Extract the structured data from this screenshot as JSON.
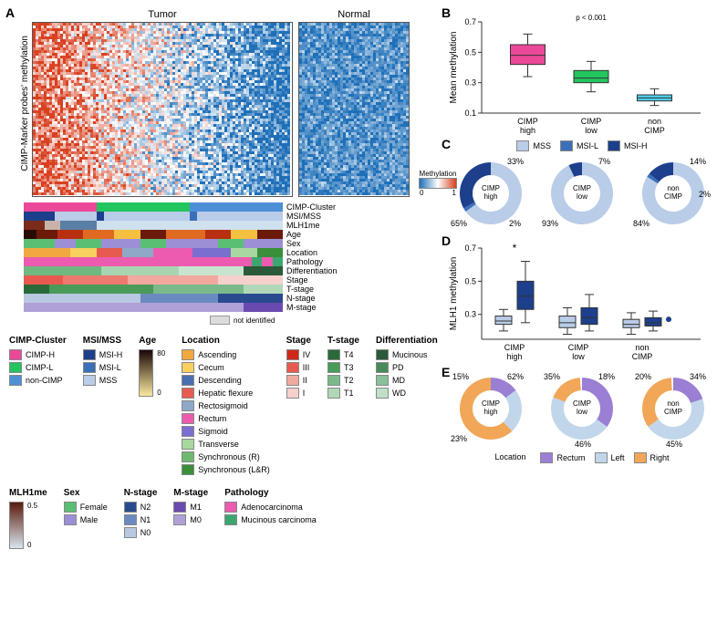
{
  "panelA": {
    "label": "A",
    "ylabel": "CIMP-Marker probes' methylation",
    "tumor_title": "Tumor",
    "normal_title": "Normal",
    "tumor_width": 284,
    "normal_width": 120,
    "heatmap_height": 190,
    "meth_legend_label": "Methylation",
    "meth_legend_min": "0",
    "meth_legend_max": "1",
    "color_low": "#1e6fb8",
    "color_mid": "#ffffff",
    "color_high": "#d84020",
    "not_identified": "not identified",
    "not_identified_color": "#dcdcdc",
    "tracks": [
      {
        "name": "CIMP-Cluster",
        "segments": [
          {
            "c": "#ec4899",
            "w": 0.28
          },
          {
            "c": "#22c55e",
            "w": 0.36
          },
          {
            "c": "#4d8fd6",
            "w": 0.36
          }
        ]
      },
      {
        "name": "MSI/MSS",
        "segments": [
          {
            "c": "#1d3f8c",
            "w": 0.12
          },
          {
            "c": "#b9cce8",
            "w": 0.16
          },
          {
            "c": "#1d3f8c",
            "w": 0.03
          },
          {
            "c": "#b9cce8",
            "w": 0.33
          },
          {
            "c": "#3b6fb8",
            "w": 0.03
          },
          {
            "c": "#b9cce8",
            "w": 0.33
          }
        ]
      },
      {
        "name": "MLH1me",
        "segments": [
          {
            "c": "#7a2b1a",
            "w": 0.08
          },
          {
            "c": "#c9b3a8",
            "w": 0.06
          },
          {
            "c": "#5a7fa6",
            "w": 0.14
          },
          {
            "c": "#cfe0ee",
            "w": 0.36
          },
          {
            "c": "#cfe0ee",
            "w": 0.36
          }
        ]
      },
      {
        "name": "Age",
        "segments": [
          {
            "c": "#2a0a05",
            "w": 0.05
          },
          {
            "c": "#6b1a0a",
            "w": 0.08
          },
          {
            "c": "#b83010",
            "w": 0.1
          },
          {
            "c": "#e06a20",
            "w": 0.12
          },
          {
            "c": "#f5c040",
            "w": 0.1
          },
          {
            "c": "#6b1a0a",
            "w": 0.1
          },
          {
            "c": "#e06a20",
            "w": 0.15
          },
          {
            "c": "#b83010",
            "w": 0.1
          },
          {
            "c": "#f5c040",
            "w": 0.1
          },
          {
            "c": "#6b1a0a",
            "w": 0.1
          }
        ]
      },
      {
        "name": "Sex",
        "segments": [
          {
            "c": "#5bbf73",
            "w": 0.12
          },
          {
            "c": "#9c8fd6",
            "w": 0.08
          },
          {
            "c": "#5bbf73",
            "w": 0.1
          },
          {
            "c": "#9c8fd6",
            "w": 0.15
          },
          {
            "c": "#5bbf73",
            "w": 0.1
          },
          {
            "c": "#9c8fd6",
            "w": 0.2
          },
          {
            "c": "#5bbf73",
            "w": 0.1
          },
          {
            "c": "#9c8fd6",
            "w": 0.15
          }
        ]
      },
      {
        "name": "Location",
        "segments": [
          {
            "c": "#f2a840",
            "w": 0.18
          },
          {
            "c": "#f7d060",
            "w": 0.1
          },
          {
            "c": "#e85a4f",
            "w": 0.1
          },
          {
            "c": "#8fa8c8",
            "w": 0.12
          },
          {
            "c": "#ec5bb0",
            "w": 0.15
          },
          {
            "c": "#7a6fd0",
            "w": 0.15
          },
          {
            "c": "#a8d8a0",
            "w": 0.1
          },
          {
            "c": "#3a8f3a",
            "w": 0.1
          }
        ]
      },
      {
        "name": "Pathology",
        "segments": [
          {
            "c": "#ec5bb0",
            "w": 0.88
          },
          {
            "c": "#3ca66f",
            "w": 0.04
          },
          {
            "c": "#ec5bb0",
            "w": 0.04
          },
          {
            "c": "#3ca66f",
            "w": 0.04
          }
        ]
      },
      {
        "name": "Differentiation",
        "segments": [
          {
            "c": "#6fb87f",
            "w": 0.3
          },
          {
            "c": "#a8d4b0",
            "w": 0.3
          },
          {
            "c": "#c8e4cf",
            "w": 0.25
          },
          {
            "c": "#2a5a3a",
            "w": 0.15
          }
        ]
      },
      {
        "name": "Stage",
        "segments": [
          {
            "c": "#e85a4f",
            "w": 0.15
          },
          {
            "c": "#ec7a6f",
            "w": 0.25
          },
          {
            "c": "#f0a89f",
            "w": 0.35
          },
          {
            "c": "#f6d0cc",
            "w": 0.25
          }
        ]
      },
      {
        "name": "T-stage",
        "segments": [
          {
            "c": "#2a6a3a",
            "w": 0.1
          },
          {
            "c": "#4a9a5a",
            "w": 0.4
          },
          {
            "c": "#7aba8a",
            "w": 0.35
          },
          {
            "c": "#b0d8b8",
            "w": 0.15
          }
        ]
      },
      {
        "name": "N-stage",
        "segments": [
          {
            "c": "#b8c8e0",
            "w": 0.45
          },
          {
            "c": "#6a8ac0",
            "w": 0.3
          },
          {
            "c": "#2a4a90",
            "w": 0.25
          }
        ]
      },
      {
        "name": "M-stage",
        "segments": [
          {
            "c": "#b0a0d8",
            "w": 0.85
          },
          {
            "c": "#6a4ab0",
            "w": 0.15
          }
        ]
      }
    ]
  },
  "legends": {
    "cimp_cluster": {
      "title": "CIMP-Cluster",
      "items": [
        {
          "c": "#ec4899",
          "t": "CIMP-H"
        },
        {
          "c": "#22c55e",
          "t": "CIMP-L"
        },
        {
          "c": "#4d8fd6",
          "t": "non-CIMP"
        }
      ]
    },
    "differentiation": {
      "title": "Differentiation",
      "items": [
        {
          "c": "#2a5a3a",
          "t": "Mucinous"
        },
        {
          "c": "#4a8a5a",
          "t": "PD"
        },
        {
          "c": "#8ac09a",
          "t": "MD"
        },
        {
          "c": "#c0e0c8",
          "t": "WD"
        }
      ]
    },
    "msi": {
      "title": "MSI/MSS",
      "items": [
        {
          "c": "#1d3f8c",
          "t": "MSI-H"
        },
        {
          "c": "#3b6fb8",
          "t": "MSI-L"
        },
        {
          "c": "#b9cce8",
          "t": "MSS"
        }
      ]
    },
    "mlh1": {
      "title": "MLH1me",
      "grad": {
        "from": "#d8e4ee",
        "to": "#5a1a0a"
      },
      "min": "0",
      "max": "0.5"
    },
    "age": {
      "title": "Age",
      "grad": {
        "from": "#f8e8a0",
        "to": "#1a0505"
      },
      "min": "0",
      "max": "80"
    },
    "sex": {
      "title": "Sex",
      "items": [
        {
          "c": "#5bbf73",
          "t": "Female"
        },
        {
          "c": "#9c8fd6",
          "t": "Male"
        }
      ]
    },
    "location": {
      "title": "Location",
      "items": [
        {
          "c": "#f2a840",
          "t": "Ascending"
        },
        {
          "c": "#f7d060",
          "t": "Cecum"
        },
        {
          "c": "#4a6fb0",
          "t": "Descending"
        },
        {
          "c": "#e85a4f",
          "t": "Hepatic flexure"
        },
        {
          "c": "#8fa8c8",
          "t": "Rectosigmoid"
        },
        {
          "c": "#ec5bb0",
          "t": "Rectum"
        },
        {
          "c": "#7a6fd0",
          "t": "Sigmoid"
        },
        {
          "c": "#a8d8a0",
          "t": "Transverse"
        },
        {
          "c": "#6fb86f",
          "t": "Synchronous (R)"
        },
        {
          "c": "#3a8f3a",
          "t": "Synchronous (L&R)"
        }
      ]
    },
    "stage": {
      "title": "Stage",
      "items": [
        {
          "c": "#d02818",
          "t": "IV"
        },
        {
          "c": "#e85a4f",
          "t": "III"
        },
        {
          "c": "#f0a89f",
          "t": "II"
        },
        {
          "c": "#f6d0cc",
          "t": "I"
        }
      ]
    },
    "nstage": {
      "title": "N-stage",
      "items": [
        {
          "c": "#2a4a90",
          "t": "N2"
        },
        {
          "c": "#6a8ac0",
          "t": "N1"
        },
        {
          "c": "#b8c8e0",
          "t": "N0"
        }
      ]
    },
    "tstage": {
      "title": "T-stage",
      "items": [
        {
          "c": "#2a6a3a",
          "t": "T4"
        },
        {
          "c": "#4a9a5a",
          "t": "T3"
        },
        {
          "c": "#7aba8a",
          "t": "T2"
        },
        {
          "c": "#b0d8b8",
          "t": "T1"
        }
      ]
    },
    "mstage": {
      "title": "M-stage",
      "items": [
        {
          "c": "#6a4ab0",
          "t": "M1"
        },
        {
          "c": "#b0a0d8",
          "t": "M0"
        }
      ]
    },
    "pathology": {
      "title": "Pathology",
      "items": [
        {
          "c": "#ec5bb0",
          "t": "Adenocarcinoma"
        },
        {
          "c": "#3ca66f",
          "t": "Mucinous carcinoma"
        }
      ]
    }
  },
  "panelB": {
    "label": "B",
    "ylabel": "Mean methylation",
    "ylim": [
      0.1,
      0.7
    ],
    "yticks": [
      0.1,
      0.3,
      0.5,
      0.7
    ],
    "groups": [
      "CIMP\nhigh",
      "CIMP\nlow",
      "non\nCIMP"
    ],
    "boxes": [
      {
        "q1": 0.42,
        "med": 0.48,
        "q3": 0.55,
        "lo": 0.34,
        "hi": 0.62,
        "color": "#ec4899"
      },
      {
        "q1": 0.3,
        "med": 0.33,
        "q3": 0.38,
        "lo": 0.24,
        "hi": 0.44,
        "color": "#22c55e"
      },
      {
        "q1": 0.18,
        "med": 0.2,
        "q3": 0.22,
        "lo": 0.15,
        "hi": 0.26,
        "color": "#4dd0f2"
      }
    ],
    "pvals": [
      "p < 0.001",
      "p < 0.001",
      "p < 0.001"
    ]
  },
  "panelC": {
    "label": "C",
    "legend": [
      {
        "c": "#b9cce8",
        "t": "MSS"
      },
      {
        "c": "#3b6fb8",
        "t": "MSI-L"
      },
      {
        "c": "#1d3f8c",
        "t": "MSI-H"
      }
    ],
    "donuts": [
      {
        "center": "CIMP\nhigh",
        "slices": [
          {
            "c": "#b9cce8",
            "v": 65,
            "l": "65%",
            "pos": "bl"
          },
          {
            "c": "#3b6fb8",
            "v": 2,
            "l": "2%",
            "pos": "br"
          },
          {
            "c": "#1d3f8c",
            "v": 33,
            "l": "33%",
            "pos": "tr"
          }
        ]
      },
      {
        "center": "CIMP\nlow",
        "slices": [
          {
            "c": "#b9cce8",
            "v": 93,
            "l": "93%",
            "pos": "bl"
          },
          {
            "c": "#1d3f8c",
            "v": 7,
            "l": "7%",
            "pos": "tr"
          }
        ]
      },
      {
        "center": "non\nCIMP",
        "slices": [
          {
            "c": "#b9cce8",
            "v": 84,
            "l": "84%",
            "pos": "bl"
          },
          {
            "c": "#3b6fb8",
            "v": 2,
            "l": "2%",
            "pos": "r"
          },
          {
            "c": "#1d3f8c",
            "v": 14,
            "l": "14%",
            "pos": "tr"
          }
        ]
      }
    ]
  },
  "panelD": {
    "label": "D",
    "ylabel": "MLH1 methylation",
    "ylim": [
      0.15,
      0.7
    ],
    "yticks": [
      0.3,
      0.5,
      0.7
    ],
    "groups": [
      "CIMP\nhigh",
      "CIMP\nlow",
      "non\nCIMP"
    ],
    "pairs": [
      {
        "a": {
          "q1": 0.24,
          "med": 0.26,
          "q3": 0.29,
          "lo": 0.2,
          "hi": 0.33,
          "color": "#b9cce8"
        },
        "b": {
          "q1": 0.33,
          "med": 0.41,
          "q3": 0.5,
          "lo": 0.25,
          "hi": 0.62,
          "color": "#1d3f8c"
        },
        "sig": "*"
      },
      {
        "a": {
          "q1": 0.22,
          "med": 0.25,
          "q3": 0.29,
          "lo": 0.18,
          "hi": 0.34,
          "color": "#b9cce8"
        },
        "b": {
          "q1": 0.24,
          "med": 0.28,
          "q3": 0.34,
          "lo": 0.2,
          "hi": 0.42,
          "color": "#1d3f8c"
        }
      },
      {
        "a": {
          "q1": 0.22,
          "med": 0.24,
          "q3": 0.27,
          "lo": 0.18,
          "hi": 0.31,
          "color": "#b9cce8"
        },
        "b": {
          "q1": 0.23,
          "med": 0.25,
          "q3": 0.28,
          "lo": 0.2,
          "hi": 0.32,
          "color": "#1d3f8c"
        },
        "dot": 0.27
      }
    ]
  },
  "panelE": {
    "label": "E",
    "legend_title": "Location",
    "legend": [
      {
        "c": "#9b7fd4",
        "t": "Rectum"
      },
      {
        "c": "#c2d6eb",
        "t": "Left"
      },
      {
        "c": "#f2a657",
        "t": "Right"
      }
    ],
    "donuts": [
      {
        "center": "CIMP\nhigh",
        "slices": [
          {
            "c": "#9b7fd4",
            "v": 15,
            "l": "15%",
            "pos": "tl"
          },
          {
            "c": "#c2d6eb",
            "v": 23,
            "l": "23%",
            "pos": "bl"
          },
          {
            "c": "#f2a657",
            "v": 62,
            "l": "62%",
            "pos": "tr"
          }
        ]
      },
      {
        "center": "CIMP\nlow",
        "slices": [
          {
            "c": "#9b7fd4",
            "v": 35,
            "l": "35%",
            "pos": "tl"
          },
          {
            "c": "#c2d6eb",
            "v": 46,
            "l": "46%",
            "pos": "b"
          },
          {
            "c": "#f2a657",
            "v": 18,
            "l": "18%",
            "pos": "tr"
          }
        ]
      },
      {
        "center": "non\nCIMP",
        "slices": [
          {
            "c": "#9b7fd4",
            "v": 20,
            "l": "20%",
            "pos": "tl"
          },
          {
            "c": "#c2d6eb",
            "v": 45,
            "l": "45%",
            "pos": "b"
          },
          {
            "c": "#f2a657",
            "v": 34,
            "l": "34%",
            "pos": "tr"
          }
        ]
      }
    ]
  }
}
